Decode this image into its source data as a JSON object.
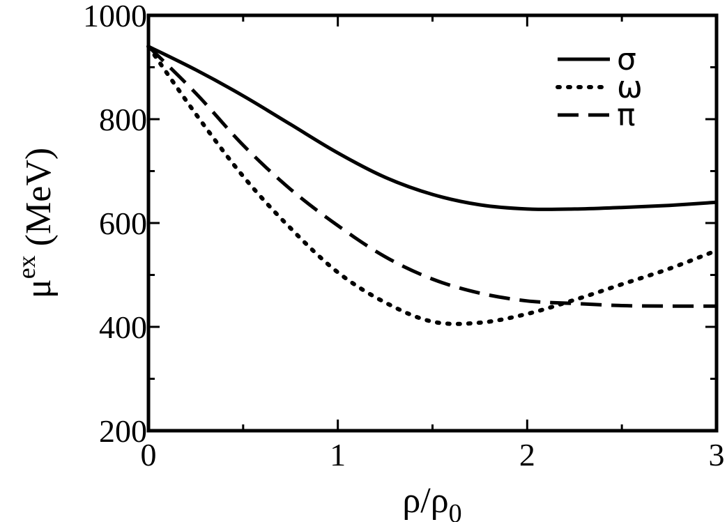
{
  "chart_data": {
    "type": "line",
    "xlabel": {
      "main": "ρ/ρ",
      "sub": "0"
    },
    "ylabel": {
      "main": "μ",
      "sup": "ex",
      "rest": " (MeV)"
    },
    "xlim": [
      0,
      3
    ],
    "ylim": [
      200,
      1000
    ],
    "xticks": [
      0,
      1,
      2,
      3
    ],
    "yticks": [
      200,
      400,
      600,
      800,
      1000
    ],
    "grid": false,
    "legend_position": "top-right",
    "series": [
      {
        "name": "σ",
        "style": "solid",
        "color": "#000000",
        "x": [
          0,
          0.25,
          0.5,
          0.75,
          1.0,
          1.25,
          1.5,
          1.75,
          2.0,
          2.25,
          2.5,
          2.75,
          3.0
        ],
        "y": [
          940,
          895,
          845,
          790,
          735,
          688,
          655,
          635,
          627,
          627,
          630,
          634,
          640
        ]
      },
      {
        "name": "ω",
        "style": "dotted",
        "color": "#000000",
        "x": [
          0,
          0.25,
          0.5,
          0.75,
          1.0,
          1.25,
          1.5,
          1.75,
          2.0,
          2.25,
          2.5,
          2.75,
          3.0
        ],
        "y": [
          940,
          810,
          690,
          590,
          505,
          447,
          410,
          408,
          425,
          452,
          482,
          512,
          547
        ]
      },
      {
        "name": "π",
        "style": "dashed",
        "color": "#000000",
        "x": [
          0,
          0.25,
          0.5,
          0.75,
          1.0,
          1.25,
          1.5,
          1.75,
          2.0,
          2.25,
          2.5,
          2.75,
          3.0
        ],
        "y": [
          940,
          850,
          750,
          665,
          595,
          535,
          492,
          465,
          450,
          445,
          441,
          440,
          440
        ]
      }
    ]
  }
}
